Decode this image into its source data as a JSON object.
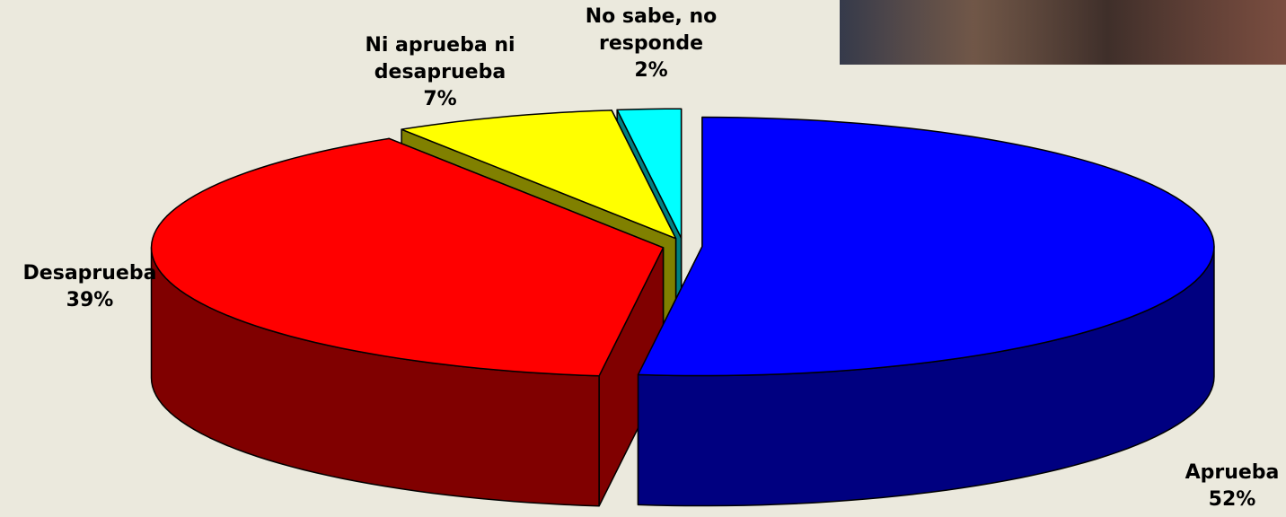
{
  "chart_data": {
    "type": "pie3d",
    "categories": [
      "Aprueba",
      "Desaprueba",
      "Ni aprueba ni desaprueba",
      "No sabe, no responde"
    ],
    "values": [
      52,
      39,
      7,
      2
    ],
    "value_labels": [
      "52%",
      "39%",
      "7%",
      "2%"
    ],
    "colors": [
      "#0000ff",
      "#ff0000",
      "#ffff00",
      "#00ffff"
    ]
  }
}
